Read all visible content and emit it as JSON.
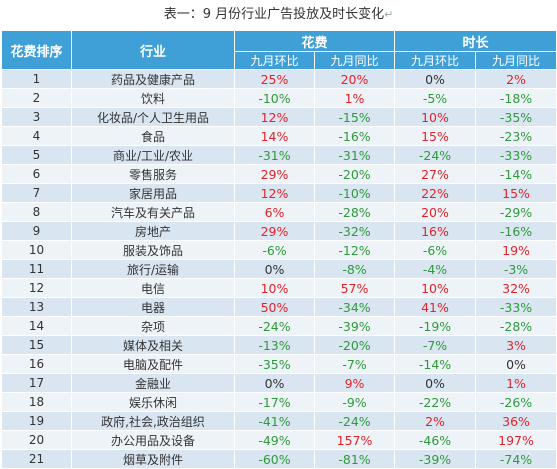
{
  "title": "表一：9 月份行业广告投放及时长变化",
  "return_mark": "↵",
  "headers": {
    "rank": "花费排序",
    "industry": "行业",
    "spend": "花费",
    "duration": "时长",
    "mom": "九月环比",
    "yoy": "九月同比"
  },
  "rows": [
    {
      "rank": "1",
      "industry": "药品及健康产品",
      "spend_mom": "25%",
      "spend_yoy": "20%",
      "dur_mom": "0%",
      "dur_yoy": "2%"
    },
    {
      "rank": "2",
      "industry": "饮料",
      "spend_mom": "-10%",
      "spend_yoy": "1%",
      "dur_mom": "-5%",
      "dur_yoy": "-18%"
    },
    {
      "rank": "3",
      "industry": "化妆品/个人卫生用品",
      "spend_mom": "12%",
      "spend_yoy": "-15%",
      "dur_mom": "10%",
      "dur_yoy": "-35%"
    },
    {
      "rank": "4",
      "industry": "食品",
      "spend_mom": "14%",
      "spend_yoy": "-16%",
      "dur_mom": "15%",
      "dur_yoy": "-23%"
    },
    {
      "rank": "5",
      "industry": "商业/工业/农业",
      "spend_mom": "-31%",
      "spend_yoy": "-31%",
      "dur_mom": "-24%",
      "dur_yoy": "-33%"
    },
    {
      "rank": "6",
      "industry": "零售服务",
      "spend_mom": "29%",
      "spend_yoy": "-20%",
      "dur_mom": "27%",
      "dur_yoy": "-14%"
    },
    {
      "rank": "7",
      "industry": "家居用品",
      "spend_mom": "12%",
      "spend_yoy": "-10%",
      "dur_mom": "22%",
      "dur_yoy": "15%"
    },
    {
      "rank": "8",
      "industry": "汽车及有关产品",
      "spend_mom": "6%",
      "spend_yoy": "-28%",
      "dur_mom": "20%",
      "dur_yoy": "-29%"
    },
    {
      "rank": "9",
      "industry": "房地产",
      "spend_mom": "29%",
      "spend_yoy": "-32%",
      "dur_mom": "16%",
      "dur_yoy": "-16%"
    },
    {
      "rank": "10",
      "industry": "服装及饰品",
      "spend_mom": "-6%",
      "spend_yoy": "-12%",
      "dur_mom": "-6%",
      "dur_yoy": "19%"
    },
    {
      "rank": "11",
      "industry": "旅行/运输",
      "spend_mom": "0%",
      "spend_yoy": "-8%",
      "dur_mom": "-4%",
      "dur_yoy": "-3%"
    },
    {
      "rank": "12",
      "industry": "电信",
      "spend_mom": "10%",
      "spend_yoy": "57%",
      "dur_mom": "10%",
      "dur_yoy": "32%"
    },
    {
      "rank": "13",
      "industry": "电器",
      "spend_mom": "50%",
      "spend_yoy": "-34%",
      "dur_mom": "41%",
      "dur_yoy": "-33%"
    },
    {
      "rank": "14",
      "industry": "杂项",
      "spend_mom": "-24%",
      "spend_yoy": "-39%",
      "dur_mom": "-19%",
      "dur_yoy": "-28%"
    },
    {
      "rank": "15",
      "industry": "媒体及相关",
      "spend_mom": "-13%",
      "spend_yoy": "-20%",
      "dur_mom": "-7%",
      "dur_yoy": "3%"
    },
    {
      "rank": "16",
      "industry": "电脑及配件",
      "spend_mom": "-35%",
      "spend_yoy": "-7%",
      "dur_mom": "-14%",
      "dur_yoy": "0%"
    },
    {
      "rank": "17",
      "industry": "金融业",
      "spend_mom": "0%",
      "spend_yoy": "9%",
      "dur_mom": "0%",
      "dur_yoy": "1%"
    },
    {
      "rank": "18",
      "industry": "娱乐休闲",
      "spend_mom": "-17%",
      "spend_yoy": "-9%",
      "dur_mom": "-22%",
      "dur_yoy": "-26%"
    },
    {
      "rank": "19",
      "industry": "政府,社会,政治组织",
      "spend_mom": "-41%",
      "spend_yoy": "-24%",
      "dur_mom": "2%",
      "dur_yoy": "36%"
    },
    {
      "rank": "20",
      "industry": "办公用品及设备",
      "spend_mom": "-49%",
      "spend_yoy": "157%",
      "dur_mom": "-46%",
      "dur_yoy": "197%"
    },
    {
      "rank": "21",
      "industry": "烟草及附件",
      "spend_mom": "-60%",
      "spend_yoy": "-81%",
      "dur_mom": "-39%",
      "dur_yoy": "-74%"
    }
  ],
  "colors": {
    "header_bg": "#3fa0d8",
    "row_odd": "#d9e6f2",
    "row_even": "#eef3f8",
    "positive": "#e0242a",
    "negative": "#2e9a3a"
  }
}
